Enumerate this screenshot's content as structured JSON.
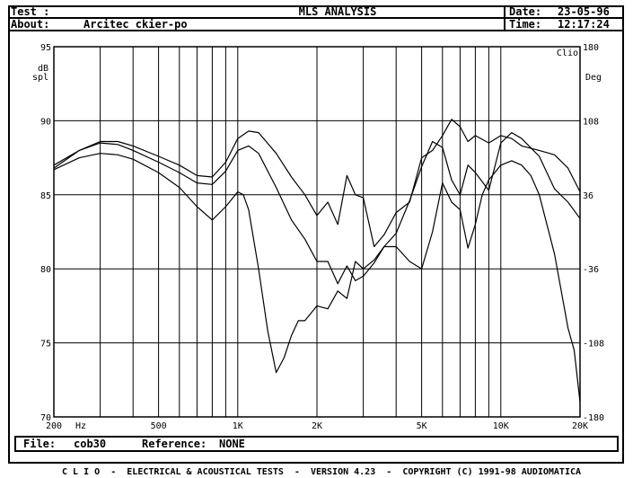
{
  "header": {
    "test_label": "Test :",
    "about_label": "About:",
    "about_value": "Arcitec ckier-po",
    "title": "MLS ANALYSIS",
    "date_label": "Date:",
    "date_value": "23-05-96",
    "time_label": "Time:",
    "time_value": "12:17:24"
  },
  "footer_bar": {
    "file_label": "File:",
    "file_value": "cob30",
    "reference_label": "Reference:",
    "reference_value": "NONE"
  },
  "footer": {
    "brand": "C L I O",
    "text": "-  ELECTRICAL & ACOUSTICAL TESTS  -  VERSION 4.23  -  COPYRIGHT (C) 1991-98 AUDIOMATICA"
  },
  "chart_data": {
    "type": "line",
    "xscale": "log",
    "xlim": [
      200,
      20000
    ],
    "ylim": [
      70,
      95
    ],
    "y2lim": [
      -180,
      180
    ],
    "ylabel": "dB\nspl",
    "y2label": "Deg",
    "y2_title": "Clio",
    "x_ticks": [
      {
        "v": 200,
        "label": "200"
      },
      {
        "v": 500,
        "label": "500"
      },
      {
        "v": 1000,
        "label": "1K"
      },
      {
        "v": 2000,
        "label": "2K"
      },
      {
        "v": 5000,
        "label": "5K"
      },
      {
        "v": 10000,
        "label": "10K"
      },
      {
        "v": 20000,
        "label": "20K"
      }
    ],
    "x_unit": "Hz",
    "y_ticks": [
      {
        "v": 95,
        "label": "95"
      },
      {
        "v": 90,
        "label": "90"
      },
      {
        "v": 85,
        "label": "85"
      },
      {
        "v": 80,
        "label": "80"
      },
      {
        "v": 75,
        "label": "75"
      },
      {
        "v": 70,
        "label": "70"
      }
    ],
    "y2_ticks": [
      {
        "v": 180,
        "label": "180"
      },
      {
        "v": 108,
        "label": "108"
      },
      {
        "v": 36,
        "label": "36"
      },
      {
        "v": -36,
        "label": "-36"
      },
      {
        "v": -108,
        "label": "-108"
      },
      {
        "v": -180,
        "label": "-180"
      }
    ],
    "x_gridlines": [
      300,
      400,
      500,
      600,
      700,
      800,
      900,
      1000,
      2000,
      3000,
      4000,
      5000,
      6000,
      7000,
      8000,
      9000,
      10000
    ],
    "grid": true,
    "series": [
      {
        "x": [
          200,
          250,
          300,
          350,
          400,
          500,
          600,
          700,
          800,
          900,
          1000,
          1100,
          1200,
          1400,
          1600,
          1800,
          2000,
          2200,
          2400,
          2600,
          2800,
          3000,
          3300,
          3600,
          4000,
          4500,
          5000,
          5500,
          6000,
          6500,
          7000,
          7500,
          8000,
          9000,
          10000,
          11000,
          12000,
          14000,
          16000,
          18000,
          20000
        ],
        "y": [
          87.0,
          88.0,
          88.6,
          88.6,
          88.3,
          87.6,
          87.0,
          86.3,
          86.2,
          87.2,
          88.8,
          89.3,
          89.2,
          87.8,
          86.2,
          85.0,
          83.6,
          84.5,
          83.0,
          86.3,
          85.0,
          84.8,
          81.5,
          82.3,
          83.8,
          84.5,
          87.5,
          88.0,
          89.0,
          90.1,
          89.6,
          88.6,
          89.0,
          88.5,
          89.0,
          88.8,
          88.3,
          88.0,
          87.7,
          86.8,
          85.2
        ]
      },
      {
        "x": [
          200,
          250,
          300,
          350,
          400,
          500,
          600,
          700,
          800,
          900,
          1000,
          1100,
          1200,
          1400,
          1600,
          1800,
          2000,
          2200,
          2400,
          2600,
          2800,
          3000,
          3300,
          3600,
          4000,
          4500,
          5000,
          5500,
          6000,
          6500,
          7000,
          7500,
          8000,
          9000,
          10000,
          11000,
          12000,
          14000,
          16000,
          18000,
          20000
        ],
        "y": [
          86.8,
          88.0,
          88.5,
          88.4,
          88.0,
          87.2,
          86.5,
          85.8,
          85.7,
          86.6,
          88.0,
          88.3,
          87.8,
          85.5,
          83.3,
          82.0,
          80.5,
          80.5,
          79.0,
          80.2,
          79.2,
          79.5,
          80.4,
          81.5,
          82.4,
          84.6,
          86.9,
          88.6,
          88.2,
          86.0,
          85.0,
          87.0,
          86.5,
          85.3,
          88.5,
          89.2,
          88.8,
          87.6,
          85.4,
          84.5,
          83.4
        ]
      },
      {
        "x": [
          200,
          250,
          300,
          350,
          400,
          500,
          600,
          700,
          800,
          900,
          1000,
          1050,
          1100,
          1200,
          1300,
          1400,
          1500,
          1600,
          1700,
          1800,
          2000,
          2200,
          2400,
          2600,
          2800,
          3000,
          3300,
          3600,
          4000,
          4500,
          5000,
          5500,
          6000,
          6500,
          7000,
          7500,
          8000,
          8500,
          9000,
          10000,
          11000,
          12000,
          13000,
          14000,
          16000,
          18000,
          19000,
          20000
        ],
        "y": [
          86.7,
          87.5,
          87.8,
          87.7,
          87.4,
          86.5,
          85.5,
          84.2,
          83.3,
          84.2,
          85.2,
          85.0,
          84.0,
          80.0,
          75.8,
          73.0,
          74.0,
          75.5,
          76.5,
          76.5,
          77.5,
          77.3,
          78.5,
          78.0,
          80.5,
          80.0,
          80.6,
          81.5,
          81.5,
          80.5,
          80.0,
          82.5,
          85.8,
          84.5,
          84.0,
          81.4,
          83.0,
          85.0,
          86.0,
          87.0,
          87.3,
          87.0,
          86.3,
          85.0,
          81.0,
          76.0,
          74.5,
          71.0
        ]
      }
    ]
  }
}
